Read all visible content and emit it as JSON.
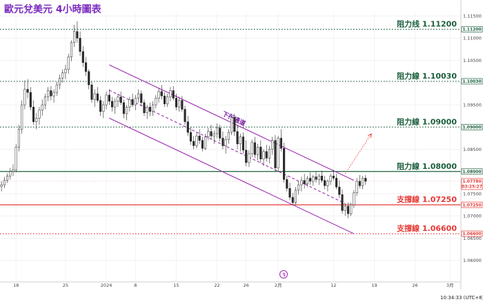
{
  "title": "歐元兌美元 4小時圖表",
  "footer": {
    "time": "10:34:33 (UTC+8)"
  },
  "chart_data": {
    "type": "candlestick",
    "title": "歐元兌美元 4小時圖表",
    "ylim": [
      1.0553,
      1.1158
    ],
    "x_ticks": [
      {
        "label": "18",
        "i": 5
      },
      {
        "label": "25",
        "i": 22
      },
      {
        "label": "2024",
        "i": 36
      },
      {
        "label": "8",
        "i": 46
      },
      {
        "label": "15",
        "i": 60
      },
      {
        "label": "22",
        "i": 74
      },
      {
        "label": "26",
        "i": 84
      },
      {
        "label": "2月",
        "i": 95
      },
      {
        "label": "12",
        "i": 114
      },
      {
        "label": "19",
        "i": 128
      },
      {
        "label": "26",
        "i": 142
      },
      {
        "label": "3月",
        "i": 154
      }
    ],
    "y_ticks": [
      "1.11500",
      "1.11000",
      "1.10500",
      "1.10000",
      "1.09500",
      "1.09000",
      "1.08500",
      "1.08000",
      "1.07500",
      "1.07000",
      "1.06500",
      "1.06000"
    ],
    "candles": [
      [
        1.0766,
        1.0778,
        1.0755,
        1.077
      ],
      [
        1.077,
        1.0788,
        1.0762,
        1.078
      ],
      [
        1.078,
        1.0796,
        1.0774,
        1.079
      ],
      [
        1.079,
        1.0808,
        1.0782,
        1.08
      ],
      [
        1.08,
        1.0816,
        1.079,
        1.0804
      ],
      [
        1.0804,
        1.0862,
        1.0798,
        1.0855
      ],
      [
        1.0855,
        1.0905,
        1.0845,
        1.0895
      ],
      [
        1.0895,
        1.096,
        1.0885,
        1.095
      ],
      [
        1.095,
        1.1005,
        1.094,
        1.0985
      ],
      [
        1.0985,
        1.1008,
        1.0965,
        1.0978
      ],
      [
        1.0978,
        1.099,
        1.0938,
        1.0945
      ],
      [
        1.0945,
        1.096,
        1.0905,
        1.0912
      ],
      [
        1.0912,
        1.0932,
        1.0895,
        1.092
      ],
      [
        1.092,
        1.0945,
        1.0905,
        1.0938
      ],
      [
        1.0938,
        1.0962,
        1.0925,
        1.095
      ],
      [
        1.095,
        1.0975,
        1.094,
        1.0968
      ],
      [
        1.0968,
        1.099,
        1.0958,
        1.0982
      ],
      [
        1.0982,
        1.0992,
        1.096,
        1.097
      ],
      [
        1.097,
        1.0985,
        1.0955,
        1.0978
      ],
      [
        1.0978,
        1.1002,
        1.097,
        1.0995
      ],
      [
        1.0995,
        1.1018,
        1.0985,
        1.101
      ],
      [
        1.101,
        1.103,
        1.1,
        1.1022
      ],
      [
        1.1022,
        1.104,
        1.1008,
        1.103
      ],
      [
        1.103,
        1.1065,
        1.102,
        1.1058
      ],
      [
        1.1058,
        1.1095,
        1.1048,
        1.109
      ],
      [
        1.109,
        1.113,
        1.108,
        1.1115
      ],
      [
        1.1115,
        1.1138,
        1.109,
        1.11
      ],
      [
        1.11,
        1.1115,
        1.106,
        1.107
      ],
      [
        1.107,
        1.1082,
        1.1035,
        1.1045
      ],
      [
        1.1045,
        1.1058,
        1.1015,
        1.1025
      ],
      [
        1.1025,
        1.103,
        1.0985,
        1.0995
      ],
      [
        1.0995,
        1.1002,
        1.0955,
        1.0962
      ],
      [
        1.0962,
        1.0985,
        1.0945,
        1.0975
      ],
      [
        1.0975,
        1.099,
        1.0955,
        1.096
      ],
      [
        1.096,
        1.097,
        1.0925,
        1.0935
      ],
      [
        1.0935,
        1.0958,
        1.092,
        1.095
      ],
      [
        1.095,
        1.098,
        1.094,
        1.0972
      ],
      [
        1.0972,
        1.0985,
        1.095,
        1.0958
      ],
      [
        1.0958,
        1.0968,
        1.0935,
        1.0945
      ],
      [
        1.0945,
        1.0965,
        1.093,
        1.0958
      ],
      [
        1.0958,
        1.0975,
        1.0945,
        1.0968
      ],
      [
        1.0968,
        1.098,
        1.095,
        1.0955
      ],
      [
        1.0955,
        1.0962,
        1.092,
        1.093
      ],
      [
        1.093,
        1.095,
        1.0915,
        1.0945
      ],
      [
        1.0945,
        1.0968,
        1.0935,
        1.0962
      ],
      [
        1.0962,
        1.0975,
        1.0945,
        1.095
      ],
      [
        1.095,
        1.0972,
        1.0938,
        1.0965
      ],
      [
        1.0965,
        1.0985,
        1.0955,
        1.0975
      ],
      [
        1.0975,
        1.0982,
        1.0948,
        1.0955
      ],
      [
        1.0955,
        1.0962,
        1.0925,
        1.0932
      ],
      [
        1.0932,
        1.095,
        1.0918,
        1.0945
      ],
      [
        1.0945,
        1.0955,
        1.0925,
        1.0935
      ],
      [
        1.0935,
        1.0958,
        1.0925,
        1.095
      ],
      [
        1.095,
        1.0972,
        1.0942,
        1.0965
      ],
      [
        1.0965,
        1.0988,
        1.0955,
        1.098
      ],
      [
        1.098,
        1.0995,
        1.0962,
        1.097
      ],
      [
        1.097,
        1.0978,
        1.0945,
        1.0952
      ],
      [
        1.0952,
        1.0975,
        1.0945,
        1.0968
      ],
      [
        1.0968,
        1.099,
        1.0958,
        1.0982
      ],
      [
        1.0982,
        1.0992,
        1.096,
        1.0965
      ],
      [
        1.0965,
        1.0975,
        1.0938,
        1.0945
      ],
      [
        1.0945,
        1.0968,
        1.0935,
        1.096
      ],
      [
        1.096,
        1.097,
        1.0935,
        1.094
      ],
      [
        1.094,
        1.0948,
        1.0905,
        1.0912
      ],
      [
        1.0912,
        1.0925,
        1.088,
        1.0888
      ],
      [
        1.0888,
        1.09,
        1.086,
        1.0868
      ],
      [
        1.0868,
        1.088,
        1.085,
        1.0858
      ],
      [
        1.0858,
        1.0888,
        1.0852,
        1.088
      ],
      [
        1.088,
        1.0895,
        1.0862,
        1.087
      ],
      [
        1.087,
        1.0878,
        1.0845,
        1.0852
      ],
      [
        1.0852,
        1.0885,
        1.0848,
        1.0878
      ],
      [
        1.0878,
        1.0898,
        1.087,
        1.089
      ],
      [
        1.089,
        1.0905,
        1.0872,
        1.088
      ],
      [
        1.088,
        1.0892,
        1.0862,
        1.0885
      ],
      [
        1.0885,
        1.0908,
        1.0875,
        1.0898
      ],
      [
        1.0898,
        1.0905,
        1.0868,
        1.0875
      ],
      [
        1.0875,
        1.089,
        1.085,
        1.0858
      ],
      [
        1.0858,
        1.088,
        1.084,
        1.0872
      ],
      [
        1.0872,
        1.0895,
        1.0862,
        1.0888
      ],
      [
        1.0888,
        1.093,
        1.0882,
        1.0922
      ],
      [
        1.0922,
        1.093,
        1.088,
        1.089
      ],
      [
        1.089,
        1.0905,
        1.085,
        1.0862
      ],
      [
        1.0862,
        1.0885,
        1.0845,
        1.0878
      ],
      [
        1.0878,
        1.0888,
        1.084,
        1.0848
      ],
      [
        1.0848,
        1.087,
        1.0812,
        1.082
      ],
      [
        1.082,
        1.0848,
        1.081,
        1.084
      ],
      [
        1.084,
        1.0872,
        1.0832,
        1.0865
      ],
      [
        1.0865,
        1.0878,
        1.083,
        1.0838
      ],
      [
        1.0838,
        1.0862,
        1.0825,
        1.0855
      ],
      [
        1.0855,
        1.087,
        1.082,
        1.0828
      ],
      [
        1.0828,
        1.085,
        1.0812,
        1.0845
      ],
      [
        1.0845,
        1.086,
        1.0822,
        1.083
      ],
      [
        1.083,
        1.0858,
        1.0818,
        1.085
      ],
      [
        1.085,
        1.0878,
        1.0838,
        1.087
      ],
      [
        1.087,
        1.0882,
        1.08,
        1.0808
      ],
      [
        1.0808,
        1.088,
        1.08,
        1.0875
      ],
      [
        1.0875,
        1.0895,
        1.0845,
        1.0852
      ],
      [
        1.0852,
        1.0865,
        1.0775,
        1.0782
      ],
      [
        1.0782,
        1.079,
        1.0755,
        1.0762
      ],
      [
        1.0762,
        1.0775,
        1.0735,
        1.0742
      ],
      [
        1.0742,
        1.0752,
        1.0725,
        1.073
      ],
      [
        1.073,
        1.0765,
        1.0725,
        1.0758
      ],
      [
        1.0758,
        1.0778,
        1.0748,
        1.077
      ],
      [
        1.077,
        1.0788,
        1.0755,
        1.078
      ],
      [
        1.078,
        1.0795,
        1.0762,
        1.0772
      ],
      [
        1.0772,
        1.079,
        1.0765,
        1.0785
      ],
      [
        1.0785,
        1.0798,
        1.077,
        1.0778
      ],
      [
        1.0778,
        1.0792,
        1.0768,
        1.0788
      ],
      [
        1.0788,
        1.08,
        1.0775,
        1.0782
      ],
      [
        1.0782,
        1.0795,
        1.077,
        1.079
      ],
      [
        1.079,
        1.0802,
        1.0775,
        1.078
      ],
      [
        1.078,
        1.079,
        1.076,
        1.0768
      ],
      [
        1.0768,
        1.0782,
        1.0755,
        1.0778
      ],
      [
        1.0778,
        1.0795,
        1.077,
        1.079
      ],
      [
        1.079,
        1.0804,
        1.078,
        1.0785
      ],
      [
        1.0785,
        1.0795,
        1.076,
        1.0765
      ],
      [
        1.0765,
        1.078,
        1.074,
        1.0748
      ],
      [
        1.0748,
        1.076,
        1.0705,
        1.0712
      ],
      [
        1.0712,
        1.0728,
        1.07,
        1.0722
      ],
      [
        1.0722,
        1.073,
        1.0695,
        1.0705
      ],
      [
        1.0705,
        1.073,
        1.07,
        1.0725
      ],
      [
        1.0725,
        1.0758,
        1.0718,
        1.0752
      ],
      [
        1.0752,
        1.0785,
        1.0745,
        1.0778
      ],
      [
        1.0778,
        1.0792,
        1.0762,
        1.0768
      ],
      [
        1.0768,
        1.079,
        1.076,
        1.0785
      ],
      [
        1.0785,
        1.0792,
        1.077,
        1.0778
      ]
    ],
    "n_slots": 158,
    "levels": [
      {
        "label": "阻力线 1.11200",
        "value": 1.112,
        "badge": "1.11200",
        "color": "#1b5e3b",
        "style": "dotted"
      },
      {
        "label": "阻力線 1.10030",
        "value": 1.1003,
        "badge": "1.10030",
        "color": "#1b5e3b",
        "style": "dotted"
      },
      {
        "label": "阻力線 1.09000",
        "value": 1.09,
        "badge": "1.09000",
        "color": "#1b5e3b",
        "style": "dotted"
      },
      {
        "label": "阻力線 1.08000",
        "value": 1.08,
        "badge": "1.08000",
        "color": "#1b5e3b",
        "style": "solid"
      },
      {
        "label": "支撐線 1.07250",
        "value": 1.0725,
        "badge": "1.07250",
        "color": "#e53935",
        "style": "solid"
      },
      {
        "label": "支撐線 1.06600",
        "value": 1.066,
        "badge": "1.06600",
        "color": "#e53935",
        "style": "dotted"
      }
    ],
    "current_price": {
      "value": 1.0778,
      "badge": "1.07780",
      "countdown": "03:25:27"
    },
    "channel": {
      "label": "下行通道",
      "upper": [
        [
          37,
          1.104
        ],
        [
          121,
          1.078
        ]
      ],
      "middle": [
        [
          37,
          1.0983
        ],
        [
          118,
          1.0728
        ]
      ],
      "lower": [
        [
          37,
          1.092
        ],
        [
          121,
          1.066
        ]
      ],
      "color": "#9c27b0"
    },
    "projection": {
      "from": [
        118,
        1.0795
      ],
      "to": [
        127,
        1.0885
      ],
      "color": "#e53935"
    }
  }
}
